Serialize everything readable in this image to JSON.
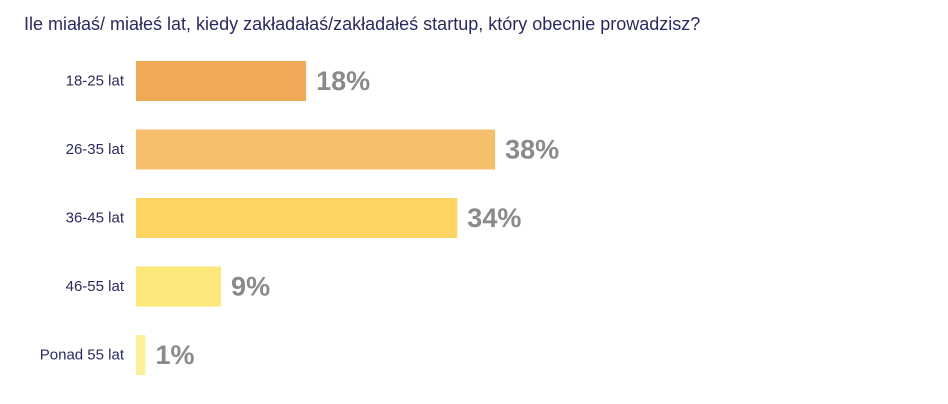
{
  "chart_data": {
    "type": "bar",
    "orientation": "horizontal",
    "title": "Ile miałaś/ miałeś lat, kiedy zakładałaś/zakładałeś startup, który obecnie prowadzisz?",
    "categories": [
      "18-25 lat",
      "26-35 lat",
      "36-45 lat",
      "46-55 lat",
      "Ponad 55 lat"
    ],
    "values": [
      18,
      38,
      34,
      9,
      1
    ],
    "value_labels": [
      "18%",
      "38%",
      "34%",
      "9%",
      "1%"
    ],
    "unit": "%",
    "xlim": [
      0,
      100
    ],
    "grid": false,
    "legend": "none",
    "colors": [
      "#f0aa57",
      "#f6bf6c",
      "#fdd462",
      "#fde67a",
      "#fdf09a"
    ],
    "label_color": "#2b2a5e",
    "value_label_color": "#8a8a8a"
  }
}
